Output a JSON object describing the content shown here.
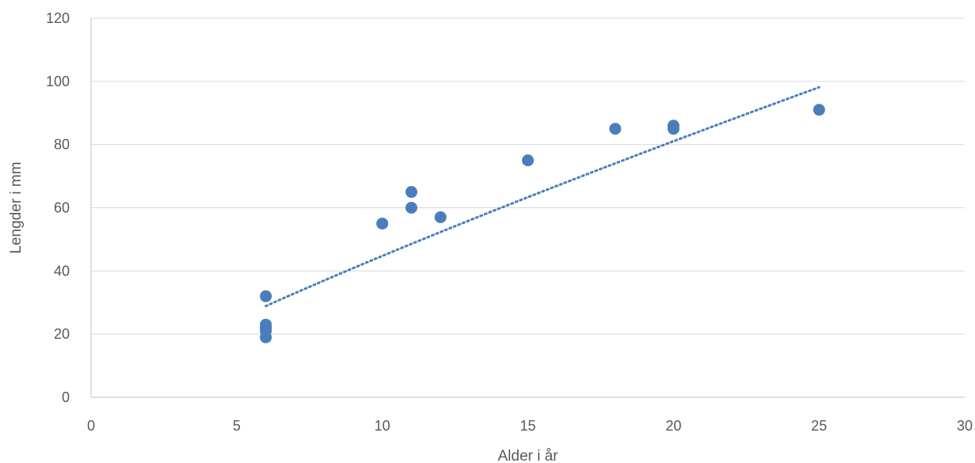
{
  "chart_data": {
    "type": "scatter",
    "title": "",
    "xlabel": "Alder i år",
    "ylabel": "Lengder i mm",
    "xlim": [
      0,
      30
    ],
    "ylim": [
      0,
      120
    ],
    "x_ticks": [
      0,
      5,
      10,
      15,
      20,
      25,
      30
    ],
    "y_ticks": [
      0,
      20,
      40,
      60,
      80,
      100,
      120
    ],
    "x_tick_labels": [
      "0",
      "5",
      "10",
      "15",
      "20",
      "25",
      "30"
    ],
    "y_tick_labels": [
      "0",
      "20",
      "40",
      "60",
      "80",
      "100",
      "120"
    ],
    "grid": "horizontal",
    "legend": "none",
    "points": [
      {
        "x": 6,
        "y": 32
      },
      {
        "x": 6,
        "y": 23
      },
      {
        "x": 6,
        "y": 22
      },
      {
        "x": 6,
        "y": 21
      },
      {
        "x": 6,
        "y": 19
      },
      {
        "x": 10,
        "y": 55
      },
      {
        "x": 11,
        "y": 65
      },
      {
        "x": 11,
        "y": 60
      },
      {
        "x": 12,
        "y": 57
      },
      {
        "x": 15,
        "y": 75
      },
      {
        "x": 18,
        "y": 85
      },
      {
        "x": 20,
        "y": 86
      },
      {
        "x": 20,
        "y": 85
      },
      {
        "x": 25,
        "y": 91
      }
    ],
    "trendline": {
      "type": "power",
      "style": "dotted",
      "x_range": [
        6,
        25
      ],
      "coefficient": 6.22,
      "exponent": 0.857
    },
    "colors": {
      "marker": "#4a7ebb",
      "trendline": "#4a7ebb",
      "grid": "#d9d9d9",
      "text": "#595959"
    }
  }
}
